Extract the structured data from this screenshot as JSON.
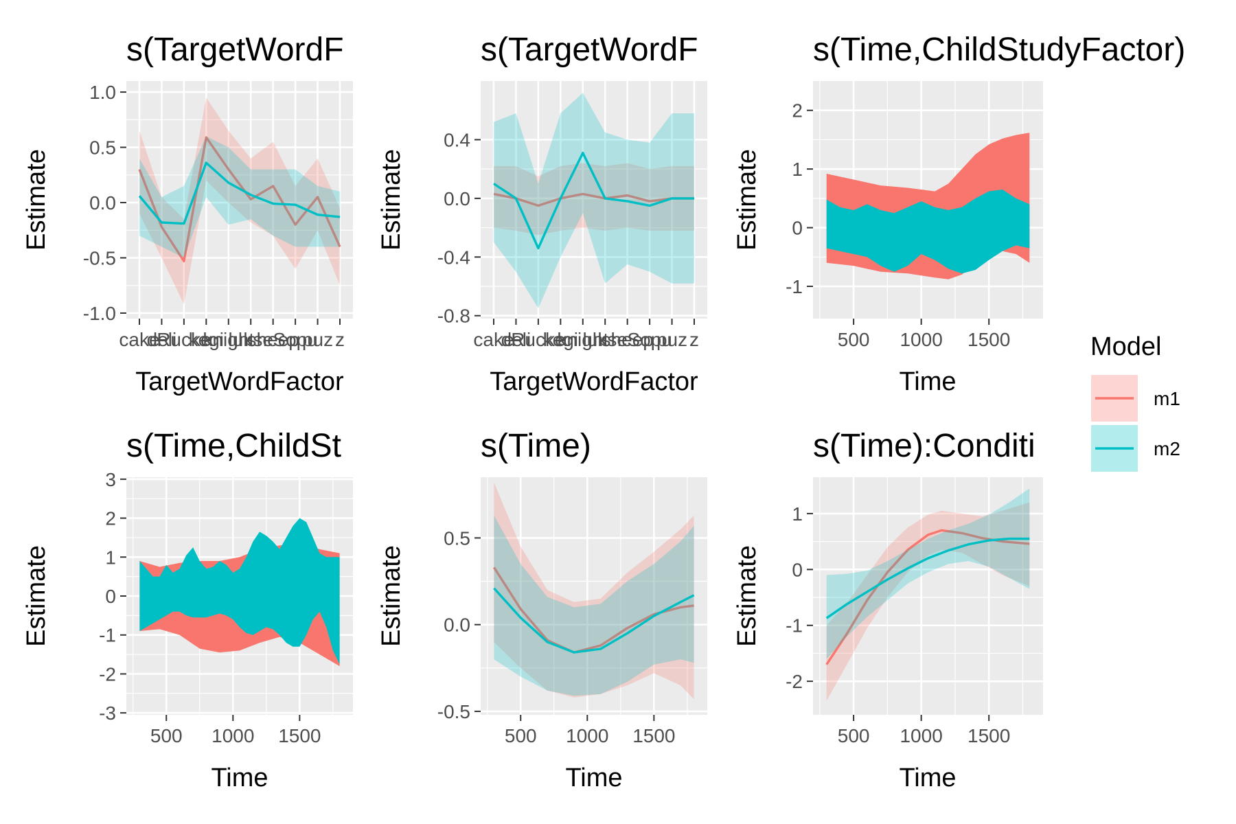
{
  "colors": {
    "m1": "#F8766D",
    "m2": "#00BFC4",
    "panel_bg": "#EBEBEB",
    "grid": "#FFFFFF"
  },
  "legend": {
    "title": "Model",
    "items": [
      {
        "label": "m1",
        "color": "#F8766D"
      },
      {
        "label": "m2",
        "color": "#00BFC4"
      }
    ]
  },
  "chart_data": [
    {
      "type": "line",
      "title": "s(TargetWordF",
      "xlabel": "TargetWordFactor",
      "ylabel": "Estimate",
      "x_tick_labels": [
        "cake",
        "deli",
        "Rucke",
        "kegi",
        "knight",
        "lukse",
        "sheep",
        "Sopu",
        "puz",
        "z"
      ],
      "ylim": [
        -1.05,
        1.1
      ],
      "yticks": [
        -1.0,
        -0.5,
        0.0,
        0.5,
        1.0
      ],
      "ytick_labels": [
        "-1.0",
        "-0.5",
        "0.0",
        "0.5",
        "1.0"
      ],
      "series": [
        {
          "name": "m1",
          "values": [
            0.3,
            -0.22,
            -0.53,
            0.59,
            0.3,
            0.03,
            0.15,
            -0.2,
            0.05,
            -0.4
          ],
          "lower": [
            -0.1,
            -0.5,
            -0.92,
            0.2,
            0.0,
            -0.18,
            -0.3,
            -0.6,
            -0.25,
            -0.75
          ],
          "upper": [
            0.65,
            0.05,
            -0.15,
            0.95,
            0.65,
            0.4,
            0.55,
            0.15,
            0.4,
            -0.05
          ]
        },
        {
          "name": "m2",
          "values": [
            0.06,
            -0.18,
            -0.19,
            0.36,
            0.18,
            0.07,
            -0.01,
            -0.02,
            -0.11,
            -0.13
          ],
          "lower": [
            -0.3,
            -0.4,
            -0.5,
            0.05,
            -0.2,
            -0.15,
            -0.3,
            -0.4,
            -0.4,
            -0.4
          ],
          "upper": [
            0.4,
            0.05,
            0.15,
            0.6,
            0.5,
            0.3,
            0.3,
            0.3,
            0.15,
            0.1
          ]
        }
      ]
    },
    {
      "type": "line",
      "title": "s(TargetWordF",
      "xlabel": "TargetWordFactor",
      "ylabel": "Estimate",
      "x_tick_labels": [
        "cake",
        "deli",
        "Rucke",
        "kegi",
        "knight",
        "lukse",
        "sheep",
        "Sopu",
        "puz",
        "z"
      ],
      "ylim": [
        -0.82,
        0.8
      ],
      "yticks": [
        -0.8,
        -0.4,
        0.0,
        0.4
      ],
      "ytick_labels": [
        "-0.8",
        "-0.4",
        "0.0",
        "0.4"
      ],
      "series": [
        {
          "name": "m1",
          "values": [
            0.03,
            0.0,
            -0.05,
            0.0,
            0.03,
            0.0,
            0.02,
            -0.02,
            0.0,
            0.0
          ],
          "lower": [
            -0.2,
            -0.22,
            -0.25,
            -0.22,
            -0.2,
            -0.22,
            -0.2,
            -0.22,
            -0.22,
            -0.22
          ],
          "upper": [
            0.22,
            0.22,
            0.15,
            0.22,
            0.24,
            0.22,
            0.24,
            0.2,
            0.22,
            0.22
          ]
        },
        {
          "name": "m2",
          "values": [
            0.1,
            0.0,
            -0.34,
            0.0,
            0.31,
            0.0,
            -0.02,
            -0.05,
            0.0,
            0.0
          ],
          "lower": [
            -0.3,
            -0.5,
            -0.75,
            -0.4,
            -0.1,
            -0.58,
            -0.45,
            -0.5,
            -0.58,
            -0.58
          ],
          "upper": [
            0.52,
            0.58,
            0.1,
            0.58,
            0.72,
            0.45,
            0.4,
            0.38,
            0.58,
            0.58
          ]
        }
      ]
    },
    {
      "type": "area",
      "title": "s(Time,ChildStudyFactor)",
      "xlabel": "Time",
      "ylabel": "Estimate",
      "xlim": [
        200,
        1900
      ],
      "xticks": [
        500,
        1000,
        1500
      ],
      "ylim": [
        -1.55,
        2.5
      ],
      "yticks": [
        -1,
        0,
        1,
        2
      ],
      "series": [
        {
          "name": "m1",
          "x": [
            300,
            500,
            700,
            900,
            1100,
            1200,
            1300,
            1400,
            1500,
            1600,
            1700,
            1800
          ],
          "lower": [
            -0.6,
            -0.65,
            -0.75,
            -0.78,
            -0.85,
            -0.88,
            -0.8,
            -0.6,
            -0.45,
            -0.4,
            -0.45,
            -0.6
          ],
          "upper": [
            0.92,
            0.82,
            0.72,
            0.68,
            0.62,
            0.75,
            1.0,
            1.25,
            1.42,
            1.52,
            1.58,
            1.62
          ]
        },
        {
          "name": "m2",
          "x": [
            300,
            400,
            500,
            600,
            700,
            800,
            900,
            1000,
            1100,
            1200,
            1300,
            1400,
            1500,
            1600,
            1700,
            1800
          ],
          "lower": [
            -0.35,
            -0.4,
            -0.45,
            -0.5,
            -0.65,
            -0.75,
            -0.65,
            -0.45,
            -0.55,
            -0.7,
            -0.78,
            -0.72,
            -0.55,
            -0.4,
            -0.3,
            -0.35
          ],
          "upper": [
            0.48,
            0.35,
            0.3,
            0.4,
            0.3,
            0.25,
            0.35,
            0.45,
            0.35,
            0.3,
            0.35,
            0.5,
            0.62,
            0.65,
            0.5,
            0.4
          ]
        }
      ]
    },
    {
      "type": "area",
      "title": "s(Time,ChildSt",
      "xlabel": "Time",
      "ylabel": "Estimate",
      "xlim": [
        200,
        1900
      ],
      "xticks": [
        500,
        1000,
        1500
      ],
      "ylim": [
        -3.05,
        3.05
      ],
      "yticks": [
        -3,
        -2,
        -1,
        0,
        1,
        2,
        3
      ],
      "series": [
        {
          "name": "m1",
          "x": [
            300,
            450,
            600,
            750,
            900,
            1050,
            1200,
            1350,
            1500,
            1650,
            1800
          ],
          "lower": [
            -0.9,
            -0.85,
            -1.0,
            -1.35,
            -1.45,
            -1.4,
            -1.2,
            -1.05,
            -1.2,
            -1.5,
            -1.8
          ],
          "upper": [
            0.9,
            0.75,
            0.85,
            0.9,
            0.9,
            1.0,
            1.2,
            1.3,
            1.35,
            1.2,
            1.1
          ]
        },
        {
          "name": "m2",
          "x": [
            300,
            350,
            400,
            450,
            500,
            550,
            600,
            650,
            700,
            750,
            800,
            850,
            900,
            950,
            1000,
            1050,
            1100,
            1150,
            1200,
            1250,
            1300,
            1350,
            1400,
            1450,
            1500,
            1550,
            1600,
            1650,
            1700,
            1750,
            1800
          ],
          "lower": [
            -0.9,
            -0.8,
            -0.7,
            -0.6,
            -0.5,
            -0.4,
            -0.4,
            -0.5,
            -0.55,
            -0.55,
            -0.55,
            -0.5,
            -0.45,
            -0.5,
            -0.6,
            -0.8,
            -0.95,
            -1.0,
            -0.9,
            -0.8,
            -0.85,
            -1.0,
            -1.2,
            -1.3,
            -1.3,
            -1.0,
            -0.6,
            -0.4,
            -0.8,
            -1.4,
            -1.75
          ],
          "upper": [
            0.9,
            0.7,
            0.5,
            0.5,
            0.8,
            0.6,
            0.7,
            1.05,
            1.25,
            0.9,
            0.7,
            0.75,
            0.9,
            0.8,
            0.6,
            0.7,
            1.0,
            1.4,
            1.65,
            1.55,
            1.4,
            1.2,
            1.5,
            1.8,
            2.0,
            1.9,
            1.5,
            1.1,
            1.0,
            1.0,
            1.0
          ]
        }
      ]
    },
    {
      "type": "line",
      "title": "s(Time)",
      "xlabel": "Time",
      "ylabel": "Estimate",
      "xlim": [
        200,
        1900
      ],
      "xticks": [
        500,
        1000,
        1500
      ],
      "ylim": [
        -0.52,
        0.85
      ],
      "yticks": [
        -0.5,
        0.0,
        0.5
      ],
      "ytick_labels": [
        "-0.5",
        "0.0",
        "0.5"
      ],
      "series": [
        {
          "name": "m1",
          "x": [
            300,
            500,
            700,
            900,
            1100,
            1300,
            1500,
            1700,
            1800
          ],
          "values": [
            0.33,
            0.09,
            -0.09,
            -0.16,
            -0.12,
            -0.02,
            0.06,
            0.1,
            0.11
          ],
          "lower": [
            -0.1,
            -0.25,
            -0.38,
            -0.42,
            -0.4,
            -0.35,
            -0.28,
            -0.35,
            -0.43
          ],
          "upper": [
            0.82,
            0.45,
            0.2,
            0.13,
            0.15,
            0.3,
            0.42,
            0.55,
            0.63
          ]
        },
        {
          "name": "m2",
          "x": [
            300,
            500,
            700,
            900,
            1100,
            1300,
            1500,
            1700,
            1800
          ],
          "values": [
            0.21,
            0.04,
            -0.1,
            -0.16,
            -0.14,
            -0.05,
            0.05,
            0.13,
            0.17
          ],
          "lower": [
            -0.2,
            -0.3,
            -0.38,
            -0.41,
            -0.4,
            -0.33,
            -0.23,
            -0.2,
            -0.22
          ],
          "upper": [
            0.63,
            0.35,
            0.16,
            0.1,
            0.12,
            0.25,
            0.35,
            0.48,
            0.57
          ]
        }
      ]
    },
    {
      "type": "line",
      "title": "s(Time):Conditi",
      "xlabel": "Time",
      "ylabel": "Estimate",
      "xlim": [
        200,
        1900
      ],
      "xticks": [
        500,
        1000,
        1500
      ],
      "ylim": [
        -2.6,
        1.65
      ],
      "yticks": [
        -2,
        -1,
        0,
        1
      ],
      "series": [
        {
          "name": "m1",
          "x": [
            300,
            450,
            600,
            750,
            900,
            1050,
            1150,
            1300,
            1450,
            1600,
            1800
          ],
          "values": [
            -1.7,
            -1.15,
            -0.55,
            -0.05,
            0.35,
            0.62,
            0.7,
            0.65,
            0.56,
            0.5,
            0.46
          ],
          "lower": [
            -2.35,
            -1.7,
            -1.05,
            -0.5,
            -0.05,
            0.25,
            0.35,
            0.3,
            0.1,
            -0.1,
            -0.3
          ],
          "upper": [
            -1.0,
            -0.6,
            -0.1,
            0.4,
            0.75,
            0.98,
            1.05,
            1.0,
            0.95,
            1.05,
            1.2
          ]
        },
        {
          "name": "m2",
          "x": [
            300,
            450,
            600,
            750,
            900,
            1050,
            1200,
            1350,
            1500,
            1650,
            1800
          ],
          "values": [
            -0.87,
            -0.62,
            -0.4,
            -0.18,
            0.02,
            0.2,
            0.34,
            0.45,
            0.52,
            0.55,
            0.55
          ],
          "lower": [
            -1.6,
            -1.2,
            -0.85,
            -0.55,
            -0.25,
            -0.05,
            0.1,
            0.15,
            0.05,
            -0.15,
            -0.35
          ],
          "upper": [
            -0.1,
            -0.08,
            -0.02,
            0.15,
            0.35,
            0.55,
            0.7,
            0.82,
            0.98,
            1.2,
            1.45
          ]
        }
      ]
    }
  ]
}
